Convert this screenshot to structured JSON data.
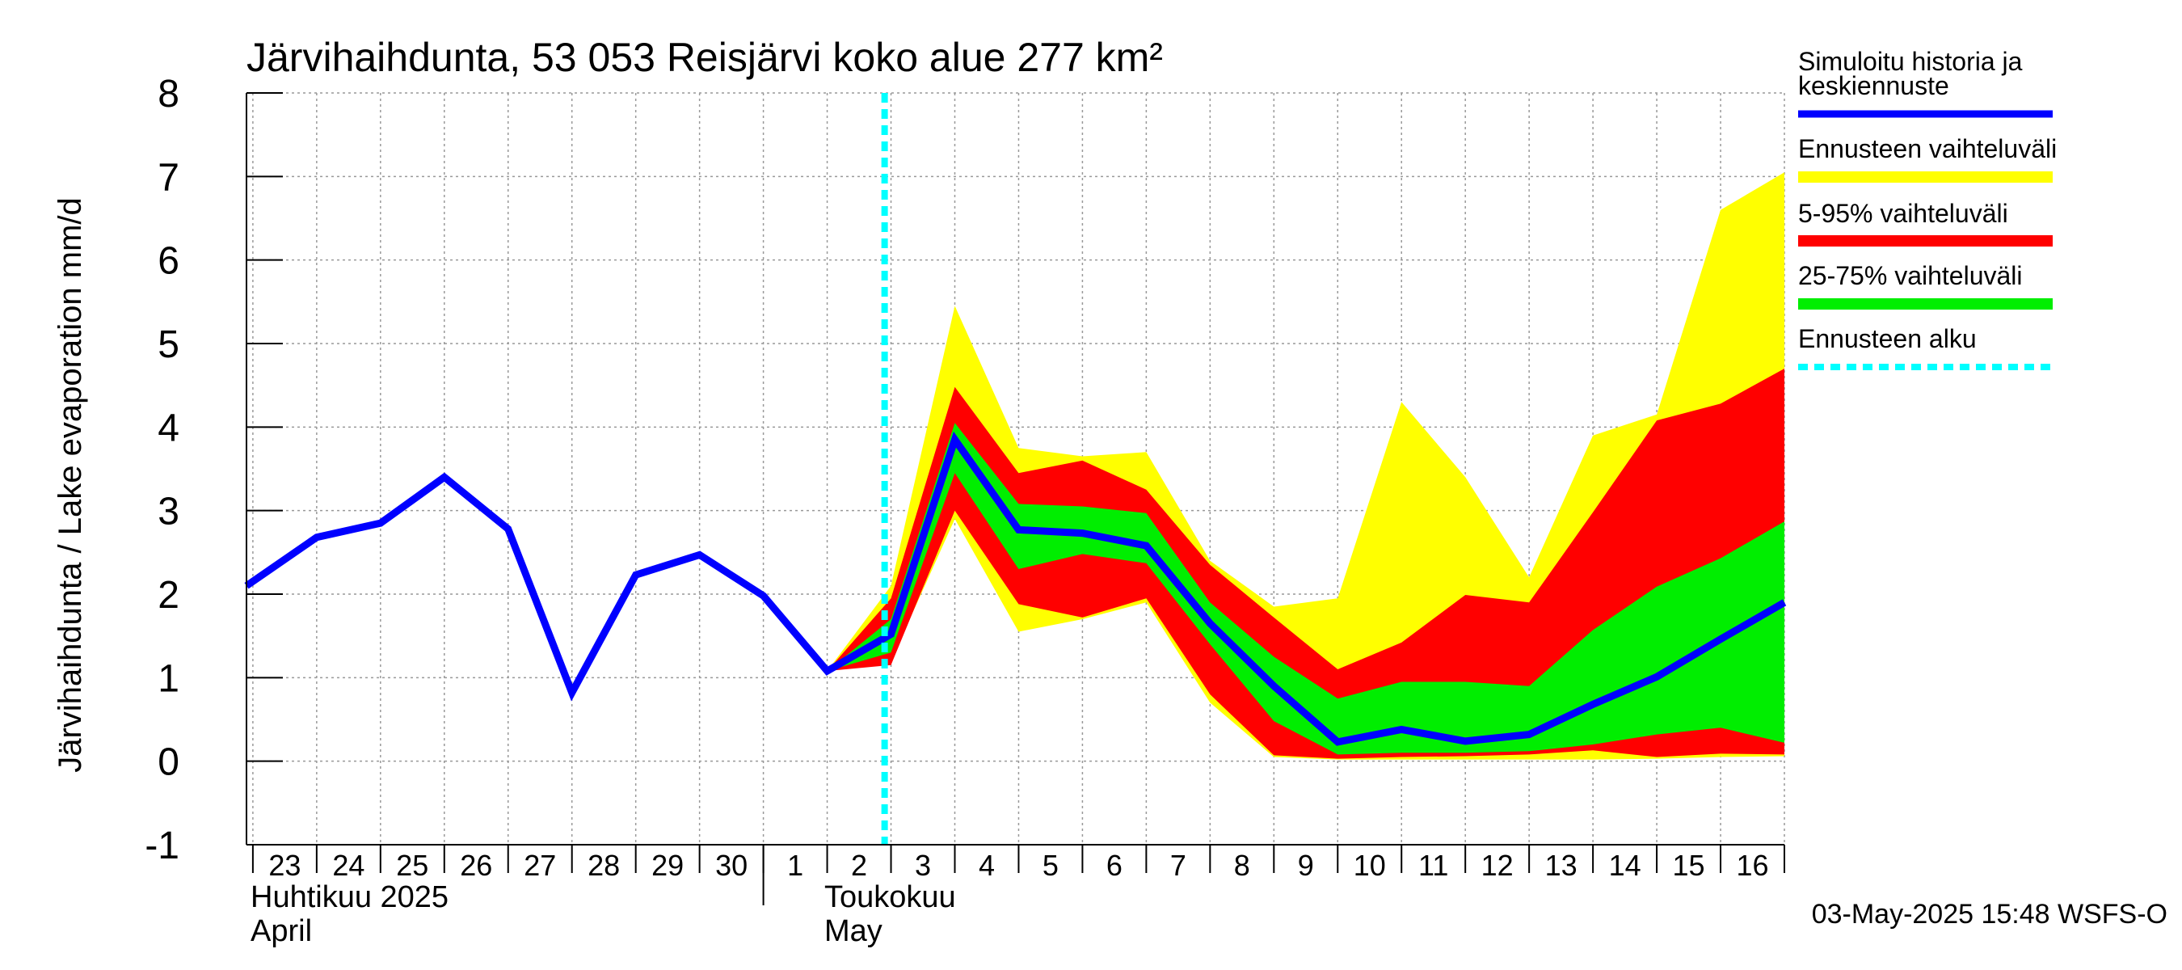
{
  "chart_data": {
    "type": "area",
    "title": "Järvihaihdunta, 53 053 Reisjärvi koko alue 277 km²",
    "ylabel": "Järvihaihdunta / Lake evaporation   mm/d",
    "ylim": [
      -1,
      8
    ],
    "yticks": [
      "-1",
      "0",
      "1",
      "2",
      "3",
      "4",
      "5",
      "6",
      "7",
      "8"
    ],
    "x_range": [
      -0.1,
      24.0
    ],
    "day_ticks": [
      "23",
      "24",
      "25",
      "26",
      "27",
      "28",
      "29",
      "30",
      "1",
      "2",
      "3",
      "4",
      "5",
      "6",
      "7",
      "8",
      "9",
      "10",
      "11",
      "12",
      "13",
      "14",
      "15",
      "16"
    ],
    "month_labels": [
      {
        "name": "Huhtikuu  2025",
        "name_en": "April"
      },
      {
        "name": "Toukokuu",
        "name_en": "May"
      }
    ],
    "history": {
      "name": "Simuloitu historia ja keskiennuste",
      "x": [
        -0.1,
        1,
        2,
        3,
        4,
        5,
        6,
        7,
        8,
        9
      ],
      "y": [
        2.1,
        2.68,
        2.85,
        3.4,
        2.78,
        0.82,
        2.23,
        2.47,
        1.98,
        1.08
      ]
    },
    "forecast_x": [
      9,
      10,
      11,
      12,
      13,
      14,
      15,
      16,
      17,
      18,
      19,
      20,
      21,
      22,
      23,
      24
    ],
    "median": [
      1.08,
      1.52,
      3.85,
      2.77,
      2.73,
      2.58,
      1.65,
      0.9,
      0.23,
      0.38,
      0.24,
      0.32,
      0.68,
      1.01,
      1.46,
      1.9
    ],
    "band_yellow": {
      "name": "Ennusteen vaihteluväli",
      "low": [
        1.08,
        1.2,
        2.9,
        1.55,
        1.7,
        1.9,
        0.7,
        0.05,
        0.02,
        0.02,
        0.02,
        0.02,
        0.02,
        0.03,
        0.05,
        0.06
      ],
      "high": [
        1.08,
        2.1,
        5.45,
        3.75,
        3.65,
        3.7,
        2.4,
        1.85,
        1.95,
        4.3,
        3.4,
        2.2,
        3.9,
        4.15,
        6.6,
        7.05
      ]
    },
    "band_red": {
      "name": "5-95% vaihteluväli",
      "low": [
        1.08,
        1.15,
        3.0,
        1.88,
        1.72,
        1.95,
        0.8,
        0.07,
        0.03,
        0.05,
        0.06,
        0.08,
        0.13,
        0.05,
        0.09,
        0.08
      ],
      "high": [
        1.08,
        1.95,
        4.48,
        3.45,
        3.6,
        3.25,
        2.35,
        1.72,
        1.1,
        1.42,
        1.99,
        1.9,
        2.98,
        4.08,
        4.28,
        4.7
      ]
    },
    "band_green": {
      "name": "25-75% vaihteluväli",
      "low": [
        1.08,
        1.3,
        3.45,
        2.3,
        2.48,
        2.37,
        1.4,
        0.48,
        0.08,
        0.1,
        0.1,
        0.12,
        0.2,
        0.32,
        0.4,
        0.22
      ],
      "high": [
        1.08,
        1.7,
        4.05,
        3.08,
        3.05,
        2.97,
        1.9,
        1.25,
        0.75,
        0.95,
        0.95,
        0.9,
        1.57,
        2.09,
        2.43,
        2.87
      ]
    },
    "forecast_start": {
      "name": "Ennusteen alku",
      "x": 9.9
    },
    "colors": {
      "history": "#0000ff",
      "yellow": "#ffff00",
      "red": "#ff0000",
      "green": "#00ee00",
      "forecast_start": "#00ffff",
      "grid": "#999999"
    },
    "legend_position": "right",
    "grid": true,
    "timestamp": "03-May-2025 15:48 WSFS-O"
  }
}
